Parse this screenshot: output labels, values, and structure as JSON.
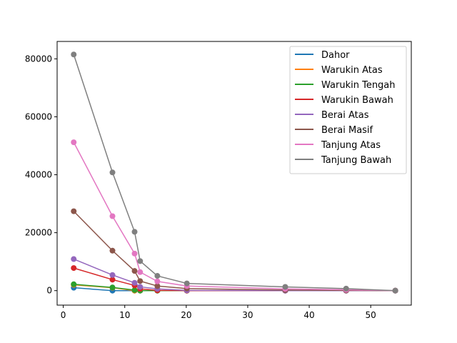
{
  "chart_data": {
    "type": "line",
    "title": "",
    "xlabel": "",
    "ylabel": "",
    "xlim": [
      -1,
      56.6
    ],
    "ylim": [
      -5000,
      86000
    ],
    "x_ticks": [
      0,
      10,
      20,
      30,
      40,
      50
    ],
    "y_ticks": [
      0,
      20000,
      40000,
      60000,
      80000
    ],
    "grid": false,
    "legend_position": "top-right",
    "x": [
      1.7,
      8,
      11.6,
      12.5,
      15.3,
      20.1,
      36.1,
      46,
      54
    ],
    "series": [
      {
        "name": "Dahor",
        "color": "#1f77b4",
        "values": [
          1000,
          0,
          0,
          0,
          0,
          0,
          0,
          0,
          0
        ]
      },
      {
        "name": "Warukin Atas",
        "color": "#ff7f0e",
        "values": [
          2000,
          1000,
          0,
          0,
          0,
          0,
          0,
          0,
          0
        ]
      },
      {
        "name": "Warukin Tengah",
        "color": "#2ca02c",
        "values": [
          2200,
          1100,
          200,
          0,
          0,
          0,
          0,
          0,
          0
        ]
      },
      {
        "name": "Warukin Bawah",
        "color": "#d62728",
        "values": [
          7800,
          3800,
          1800,
          600,
          100,
          0,
          0,
          0,
          0
        ]
      },
      {
        "name": "Berai Atas",
        "color": "#9467bd",
        "values": [
          10900,
          5400,
          2700,
          1300,
          600,
          100,
          0,
          0,
          0
        ]
      },
      {
        "name": "Berai Masif",
        "color": "#8c564b",
        "values": [
          27400,
          13800,
          6800,
          3300,
          1600,
          700,
          200,
          100,
          0
        ]
      },
      {
        "name": "Tanjung Atas",
        "color": "#e377c2",
        "values": [
          51200,
          25700,
          12800,
          6400,
          3200,
          1600,
          600,
          300,
          0
        ]
      },
      {
        "name": "Tanjung Bawah",
        "color": "#7f7f7f",
        "values": [
          81500,
          40800,
          20300,
          10200,
          5100,
          2500,
          1300,
          700,
          0
        ]
      }
    ]
  }
}
